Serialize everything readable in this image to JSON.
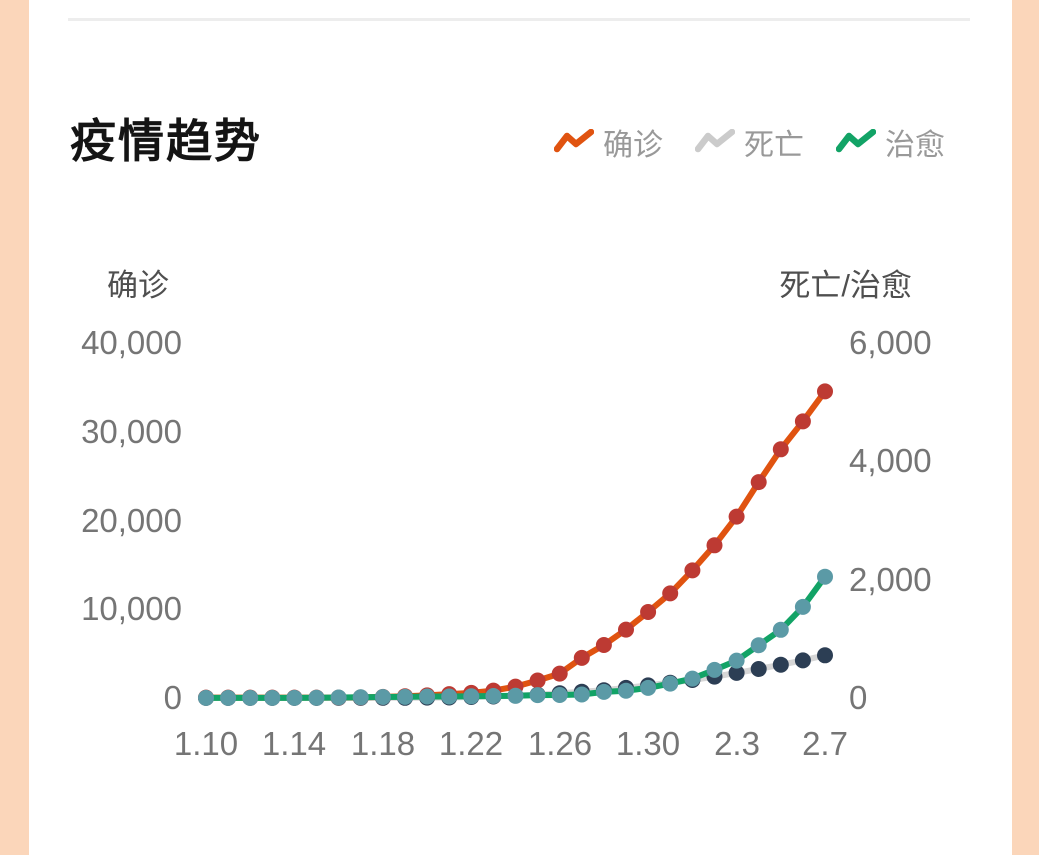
{
  "page": {
    "title": "疫情趋势"
  },
  "legend": [
    {
      "label": "确诊",
      "color": "#e05310"
    },
    {
      "label": "死亡",
      "color": "#cbcbcb"
    },
    {
      "label": "治愈",
      "color": "#12a366"
    }
  ],
  "chart_data": {
    "type": "line",
    "title": "疫情趋势",
    "grid": false,
    "legend_position": "top-right",
    "x_tick_labels": [
      "1.10",
      "1.14",
      "1.18",
      "1.22",
      "1.26",
      "1.30",
      "2.3",
      "2.7"
    ],
    "num_points": 29,
    "left_axis": {
      "title": "确诊",
      "ticks": [
        "40,000",
        "30,000",
        "20,000",
        "10,000",
        "0"
      ],
      "range": [
        0,
        40000
      ]
    },
    "right_axis": {
      "title": "死亡/治愈",
      "ticks": [
        "6,000",
        "4,000",
        "2,000",
        "0"
      ],
      "range": [
        0,
        6000
      ]
    },
    "series": [
      {
        "name": "确诊",
        "key": "confirmed",
        "axis": "left",
        "z": 1,
        "line_color": "#e05310",
        "dot_color": "#bd3a33",
        "values": [
          41,
          41,
          41,
          41,
          41,
          41,
          45,
          62,
          121,
          198,
          291,
          440,
          571,
          830,
          1287,
          1975,
          2744,
          4515,
          5974,
          7711,
          9692,
          11791,
          14380,
          17205,
          20438,
          24324,
          28018,
          31161,
          34546
        ]
      },
      {
        "name": "死亡",
        "key": "deaths",
        "axis": "right",
        "z": 0,
        "line_color": "#d6d6d6",
        "dot_color": "#2c3e54",
        "values": [
          1,
          1,
          1,
          1,
          1,
          2,
          2,
          2,
          3,
          3,
          6,
          9,
          17,
          25,
          41,
          56,
          80,
          106,
          132,
          170,
          213,
          259,
          304,
          361,
          425,
          490,
          563,
          636,
          722
        ]
      },
      {
        "name": "治愈",
        "key": "cured",
        "axis": "right",
        "z": 2,
        "line_color": "#12a366",
        "dot_color": "#5b9aa6",
        "values": [
          2,
          2,
          2,
          2,
          2,
          4,
          8,
          12,
          17,
          19,
          25,
          25,
          28,
          34,
          38,
          49,
          51,
          60,
          103,
          124,
          171,
          243,
          328,
          475,
          632,
          892,
          1153,
          1540,
          2050
        ]
      }
    ]
  }
}
